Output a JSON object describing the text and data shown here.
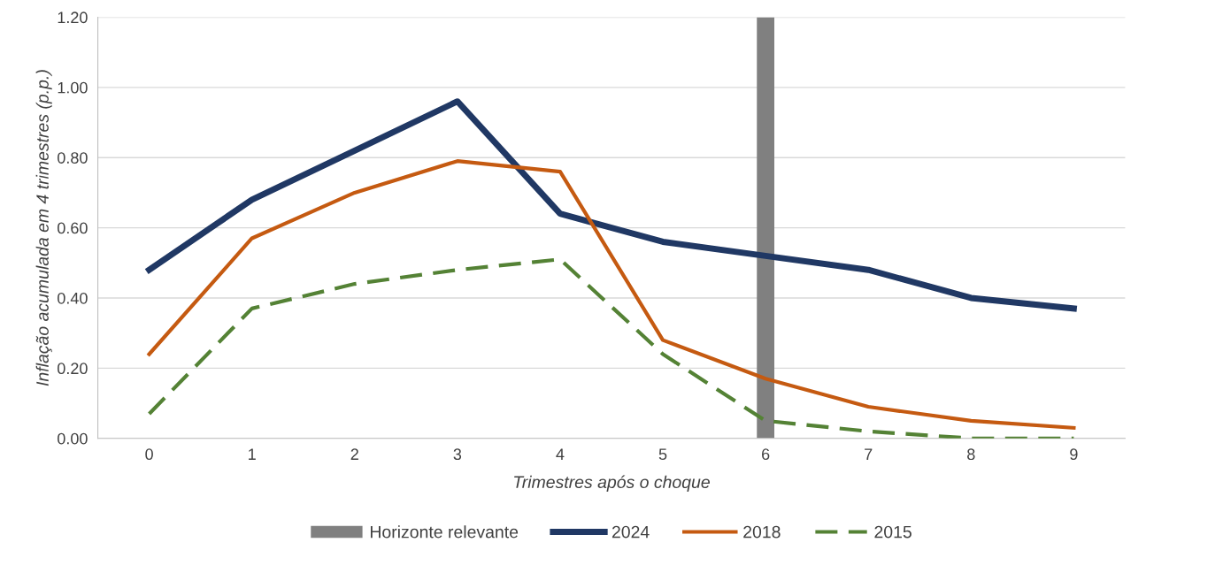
{
  "chart_data": {
    "type": "line",
    "xlabel": "Trimestres após o choque",
    "ylabel": "Inflação acumulada em 4 trimestres (p.p.)",
    "categories": [
      "0",
      "1",
      "2",
      "3",
      "4",
      "5",
      "6",
      "7",
      "8",
      "9"
    ],
    "ylim": [
      0,
      1.2
    ],
    "yticks": [
      {
        "value": 0,
        "label": "0.00"
      },
      {
        "value": 0.2,
        "label": "0.20"
      },
      {
        "value": 0.4,
        "label": "0.40"
      },
      {
        "value": 0.6,
        "label": "0.60"
      },
      {
        "value": 0.8,
        "label": "0.80"
      },
      {
        "value": 1.0,
        "label": "1.00"
      },
      {
        "value": 1.2,
        "label": "1.20"
      }
    ],
    "grid": "y",
    "legend": "bottom",
    "series": [
      {
        "name": "Horizonte relevante",
        "type": "bar",
        "color": "#808080",
        "values": [
          null,
          null,
          null,
          null,
          null,
          null,
          1.2,
          null,
          null,
          null
        ]
      },
      {
        "name": "2024",
        "color": "#203864",
        "line_style": "solid",
        "values": [
          0.48,
          0.68,
          0.82,
          0.96,
          0.64,
          0.56,
          0.52,
          0.48,
          0.4,
          0.37
        ]
      },
      {
        "name": "2018",
        "color": "#c55a11",
        "line_style": "solid",
        "values": [
          0.24,
          0.57,
          0.7,
          0.79,
          0.76,
          0.28,
          0.17,
          0.09,
          0.05,
          0.03
        ]
      },
      {
        "name": "2015",
        "color": "#548235",
        "line_style": "dashed",
        "values": [
          0.07,
          0.37,
          0.44,
          0.48,
          0.51,
          0.24,
          0.05,
          0.02,
          0.0,
          0.0
        ]
      }
    ]
  }
}
